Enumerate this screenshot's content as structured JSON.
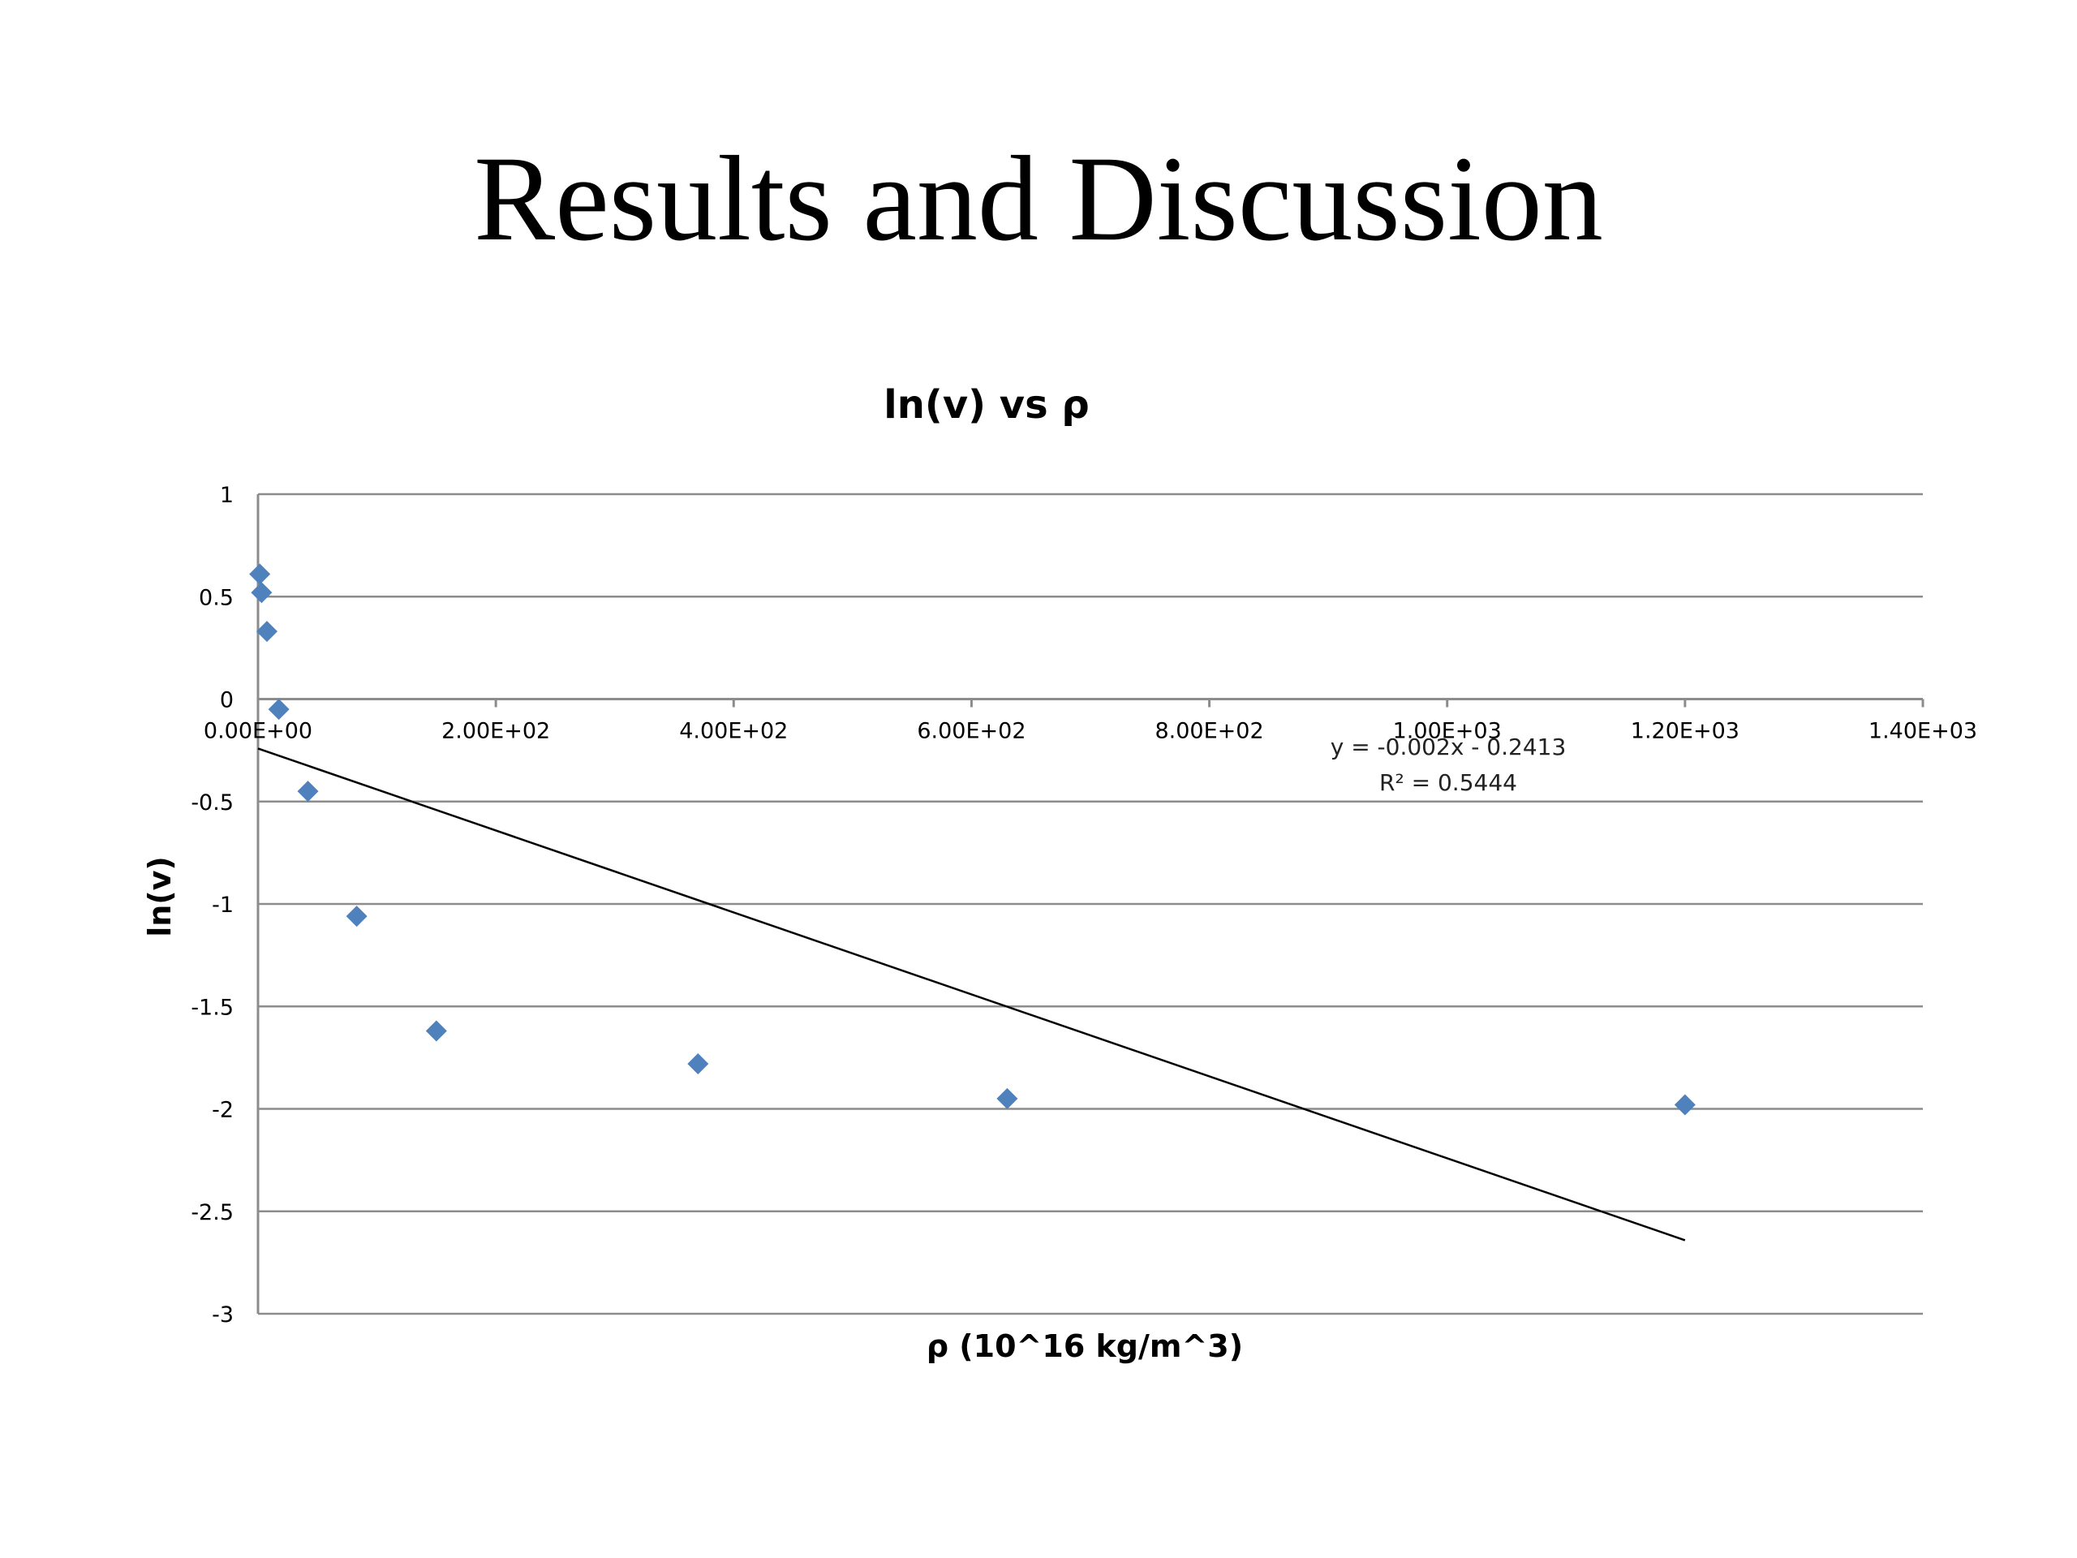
{
  "slide": {
    "title": "Results and Discussion"
  },
  "chart_data": {
    "type": "scatter",
    "title": "ln(v) vs ρ",
    "xlabel": "ρ (10^16 kg/m^3)",
    "ylabel": "ln(v)",
    "xlim": [
      0,
      1400
    ],
    "ylim": [
      -3,
      1
    ],
    "x_ticks": [
      0,
      200,
      400,
      600,
      800,
      1000,
      1200,
      1400
    ],
    "x_tick_labels": [
      "0.00E+00",
      "2.00E+02",
      "4.00E+02",
      "6.00E+02",
      "8.00E+02",
      "1.00E+03",
      "1.20E+03",
      "1.40E+03"
    ],
    "y_ticks": [
      1,
      0.5,
      0,
      -0.5,
      -1,
      -1.5,
      -2,
      -2.5,
      -3
    ],
    "y_tick_labels": [
      "1",
      "0.5",
      "0",
      "-0.5",
      "-1",
      "-1.5",
      "-2",
      "-2.5",
      "-3"
    ],
    "grid": "horizontal",
    "series": [
      {
        "marker": "diamond",
        "color": "#4F81BD",
        "x": [
          1.5,
          3,
          7.5,
          17.5,
          42,
          83,
          150,
          370,
          630,
          1200
        ],
        "y": [
          0.61,
          0.52,
          0.33,
          -0.05,
          -0.45,
          -1.06,
          -1.62,
          -1.78,
          -1.95,
          -1.98
        ]
      }
    ],
    "trendline": {
      "type": "linear",
      "slope": -0.002,
      "intercept": -0.2413,
      "x_range": [
        0,
        1200
      ],
      "color": "#000000",
      "equation_label": "y = -0.002x - 0.2413",
      "r2_label": "R² = 0.5444"
    }
  }
}
